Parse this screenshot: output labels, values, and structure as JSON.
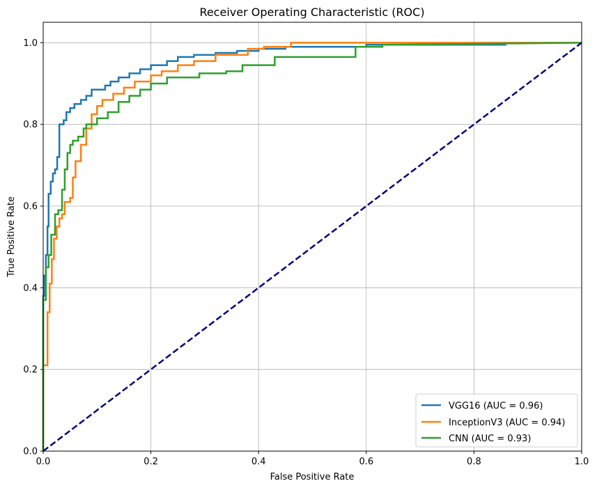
{
  "chart_data": {
    "type": "line",
    "title": "Receiver Operating Characteristic (ROC)",
    "xlabel": "False Positive Rate",
    "ylabel": "True Positive Rate",
    "xlim": [
      0,
      1
    ],
    "ylim": [
      0,
      1.05
    ],
    "x_ticks": [
      "0.0",
      "0.2",
      "0.4",
      "0.6",
      "0.8",
      "1.0"
    ],
    "y_ticks": [
      "0.0",
      "0.2",
      "0.4",
      "0.6",
      "0.8",
      "1.0"
    ],
    "grid": true,
    "legend_position": "bottom-right",
    "series": [
      {
        "name": "VGG16 (AUC = 0.96)",
        "color": "#1f77b4",
        "x": [
          0,
          0,
          0.002,
          0.002,
          0.005,
          0.005,
          0.008,
          0.008,
          0.01,
          0.01,
          0.014,
          0.014,
          0.018,
          0.018,
          0.022,
          0.022,
          0.026,
          0.026,
          0.03,
          0.03,
          0.038,
          0.038,
          0.043,
          0.043,
          0.05,
          0.05,
          0.058,
          0.058,
          0.07,
          0.07,
          0.08,
          0.08,
          0.09,
          0.09,
          0.115,
          0.115,
          0.125,
          0.125,
          0.14,
          0.14,
          0.16,
          0.16,
          0.18,
          0.18,
          0.2,
          0.2,
          0.23,
          0.23,
          0.25,
          0.25,
          0.28,
          0.28,
          0.32,
          0.32,
          0.36,
          0.36,
          0.4,
          0.4,
          0.45,
          0.45,
          0.6,
          0.6,
          0.86
        ],
        "y": [
          0,
          0.38,
          0.38,
          0.43,
          0.43,
          0.48,
          0.48,
          0.55,
          0.55,
          0.63,
          0.63,
          0.66,
          0.66,
          0.68,
          0.68,
          0.69,
          0.69,
          0.72,
          0.72,
          0.8,
          0.8,
          0.81,
          0.81,
          0.83,
          0.83,
          0.84,
          0.84,
          0.85,
          0.85,
          0.86,
          0.86,
          0.87,
          0.87,
          0.885,
          0.885,
          0.895,
          0.895,
          0.905,
          0.905,
          0.915,
          0.915,
          0.925,
          0.925,
          0.935,
          0.935,
          0.945,
          0.945,
          0.955,
          0.955,
          0.965,
          0.965,
          0.97,
          0.97,
          0.975,
          0.975,
          0.98,
          0.98,
          0.985,
          0.985,
          0.99,
          0.99,
          0.995,
          0.995
        ]
      },
      {
        "name": "InceptionV3 (AUC = 0.94)",
        "color": "#ff7f0e",
        "x": [
          0,
          0,
          0.008,
          0.008,
          0.012,
          0.012,
          0.016,
          0.016,
          0.02,
          0.02,
          0.025,
          0.025,
          0.03,
          0.03,
          0.035,
          0.035,
          0.04,
          0.04,
          0.05,
          0.05,
          0.055,
          0.055,
          0.06,
          0.06,
          0.07,
          0.07,
          0.08,
          0.08,
          0.09,
          0.09,
          0.1,
          0.1,
          0.11,
          0.11,
          0.13,
          0.13,
          0.15,
          0.15,
          0.17,
          0.17,
          0.2,
          0.2,
          0.22,
          0.22,
          0.25,
          0.25,
          0.28,
          0.28,
          0.32,
          0.32,
          0.38,
          0.38,
          0.41,
          0.41,
          0.46,
          0.46,
          1.0
        ],
        "y": [
          0,
          0.21,
          0.21,
          0.34,
          0.34,
          0.41,
          0.41,
          0.47,
          0.47,
          0.52,
          0.52,
          0.55,
          0.55,
          0.57,
          0.57,
          0.58,
          0.58,
          0.61,
          0.61,
          0.62,
          0.62,
          0.67,
          0.67,
          0.71,
          0.71,
          0.75,
          0.75,
          0.79,
          0.79,
          0.825,
          0.825,
          0.845,
          0.845,
          0.86,
          0.86,
          0.875,
          0.875,
          0.89,
          0.89,
          0.905,
          0.905,
          0.92,
          0.92,
          0.93,
          0.93,
          0.945,
          0.945,
          0.955,
          0.955,
          0.97,
          0.97,
          0.985,
          0.985,
          0.99,
          0.99,
          1.0,
          1.0
        ]
      },
      {
        "name": "CNN (AUC = 0.93)",
        "color": "#2ca02c",
        "x": [
          0,
          0,
          0.005,
          0.005,
          0.01,
          0.01,
          0.015,
          0.015,
          0.022,
          0.022,
          0.028,
          0.028,
          0.035,
          0.035,
          0.04,
          0.04,
          0.045,
          0.045,
          0.05,
          0.05,
          0.055,
          0.055,
          0.065,
          0.065,
          0.075,
          0.075,
          0.08,
          0.08,
          0.1,
          0.1,
          0.12,
          0.12,
          0.14,
          0.14,
          0.16,
          0.16,
          0.18,
          0.18,
          0.2,
          0.2,
          0.23,
          0.23,
          0.29,
          0.29,
          0.34,
          0.34,
          0.37,
          0.37,
          0.43,
          0.43,
          0.58,
          0.58,
          0.63,
          0.63,
          1.0
        ],
        "y": [
          0,
          0.37,
          0.37,
          0.45,
          0.45,
          0.48,
          0.48,
          0.53,
          0.53,
          0.58,
          0.58,
          0.59,
          0.59,
          0.64,
          0.64,
          0.69,
          0.69,
          0.73,
          0.73,
          0.75,
          0.75,
          0.76,
          0.76,
          0.77,
          0.77,
          0.79,
          0.79,
          0.8,
          0.8,
          0.815,
          0.815,
          0.83,
          0.83,
          0.855,
          0.855,
          0.87,
          0.87,
          0.885,
          0.885,
          0.9,
          0.9,
          0.915,
          0.915,
          0.925,
          0.925,
          0.93,
          0.93,
          0.945,
          0.945,
          0.965,
          0.965,
          0.99,
          0.99,
          0.995,
          1.0
        ]
      }
    ],
    "reference_line": {
      "x": [
        0,
        1
      ],
      "y": [
        0,
        1
      ],
      "color": "#000080",
      "style": "dashed"
    }
  }
}
